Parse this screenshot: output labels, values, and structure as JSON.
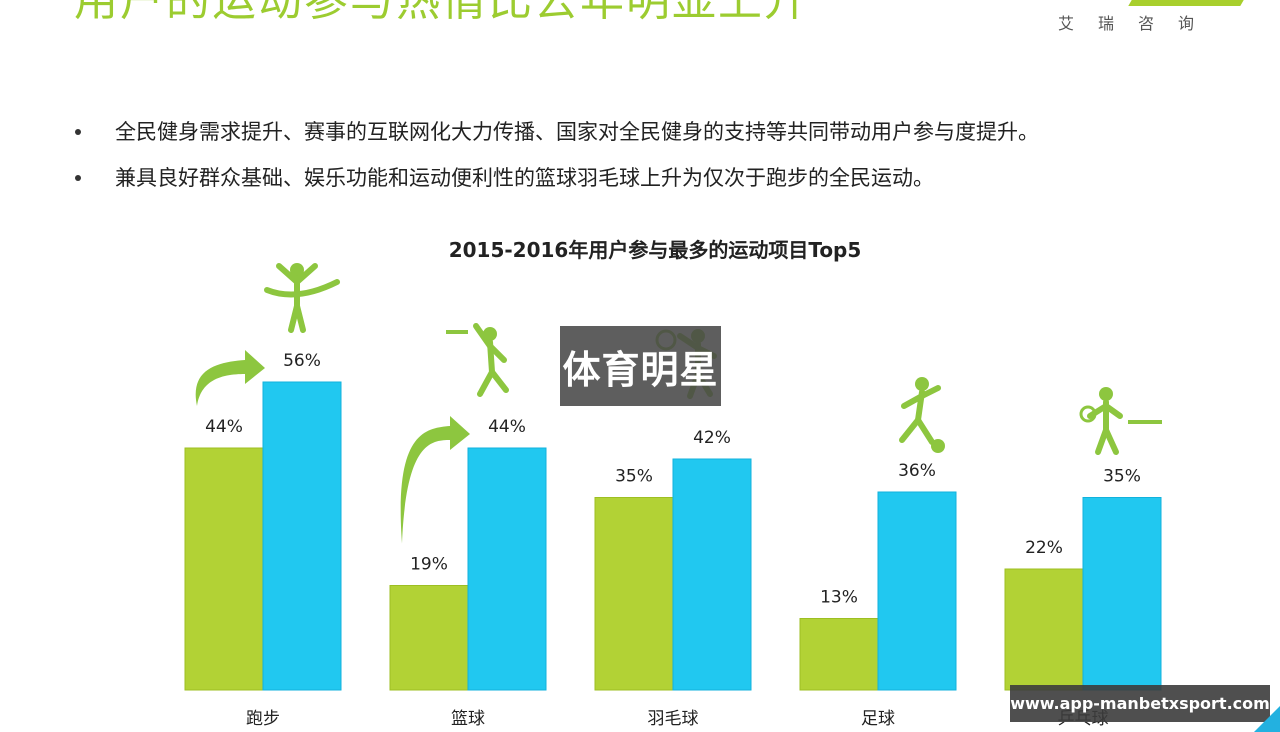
{
  "slide": {
    "headline": "用户的运动参与热情比去年明显上升",
    "logo_text": "艾瑞咨询",
    "bullets": [
      "全民健身需求提升、赛事的互联网化大力传播、国家对全民健身的支持等共同带动用户参与度提升。",
      "兼具良好群众基础、娱乐功能和运动便利性的篮球羽毛球上升为仅次于跑步的全民运动。"
    ]
  },
  "overlays": {
    "watermark_text": "体育明星",
    "site_text": "www.app-manbetxsport.com"
  },
  "colors": {
    "series_2015": "#b2d235",
    "series_2016": "#21c8f0",
    "accent": "#9ccc30",
    "icon": "#8dc63f"
  },
  "icons": [
    "runner-icon",
    "basketball-player-icon",
    "badminton-player-icon",
    "soccer-player-icon",
    "table-tennis-player-icon",
    "up-arrow-icon"
  ],
  "chart_data": {
    "type": "bar",
    "title": "2015-2016年用户参与最多的运动项目Top5",
    "categories": [
      "跑步",
      "篮球",
      "羽毛球",
      "足球",
      "乒乓球"
    ],
    "series": [
      {
        "values": [
          44,
          19,
          35,
          13,
          22
        ]
      },
      {
        "values": [
          56,
          44,
          42,
          36,
          35
        ]
      }
    ],
    "value_labels": [
      [
        "44%",
        "19%",
        "35%",
        "13%",
        "22%"
      ],
      [
        "56%",
        "44%",
        "42%",
        "36%",
        "35%"
      ]
    ],
    "ylim": [
      0,
      56
    ],
    "grid": false,
    "legend": "none",
    "highlight_arrows_on": [
      "跑步",
      "篮球"
    ]
  }
}
